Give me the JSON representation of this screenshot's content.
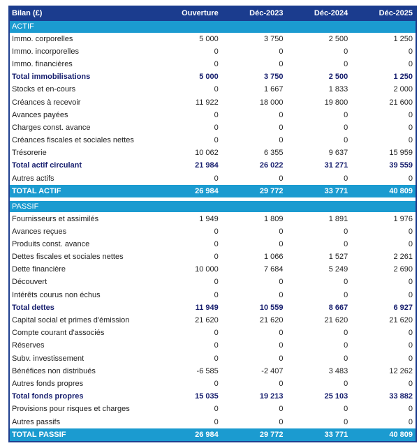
{
  "header": {
    "title": "Bilan (£)",
    "columns": [
      "Ouverture",
      "Déc-2023",
      "Déc-2024",
      "Déc-2025"
    ]
  },
  "colors": {
    "header_bg": "#1b3c8e",
    "section_bg": "#1b9bd0",
    "total_text": "#161e6e"
  },
  "sections": [
    {
      "label": "ACTIF",
      "rows": [
        {
          "label": "Immo. corporelles",
          "values": [
            "5 000",
            "3 750",
            "2 500",
            "1 250"
          ]
        },
        {
          "label": "Immo. incorporelles",
          "values": [
            "0",
            "0",
            "0",
            "0"
          ]
        },
        {
          "label": "Immo. financières",
          "values": [
            "0",
            "0",
            "0",
            "0"
          ]
        },
        {
          "label": "Total immobilisations",
          "values": [
            "5 000",
            "3 750",
            "2 500",
            "1 250"
          ],
          "type": "total"
        },
        {
          "label": "Stocks et en-cours",
          "values": [
            "0",
            "1 667",
            "1 833",
            "2 000"
          ]
        },
        {
          "label": "Créances à recevoir",
          "values": [
            "11 922",
            "18 000",
            "19 800",
            "21 600"
          ]
        },
        {
          "label": "Avances payées",
          "values": [
            "0",
            "0",
            "0",
            "0"
          ]
        },
        {
          "label": "Charges const. avance",
          "values": [
            "0",
            "0",
            "0",
            "0"
          ]
        },
        {
          "label": "Créances fiscales et sociales nettes",
          "values": [
            "0",
            "0",
            "0",
            "0"
          ]
        },
        {
          "label": "Trésorerie",
          "values": [
            "10 062",
            "6 355",
            "9 637",
            "15 959"
          ]
        },
        {
          "label": "Total actif circulant",
          "values": [
            "21 984",
            "26 022",
            "31 271",
            "39 559"
          ],
          "type": "total"
        },
        {
          "label": "Autres actifs",
          "values": [
            "0",
            "0",
            "0",
            "0"
          ]
        },
        {
          "label": "TOTAL ACTIF",
          "values": [
            "26 984",
            "29 772",
            "33 771",
            "40 809"
          ],
          "type": "grand"
        }
      ]
    },
    {
      "label": "PASSIF",
      "rows": [
        {
          "label": "Fournisseurs et assimilés",
          "values": [
            "1 949",
            "1 809",
            "1 891",
            "1 976"
          ]
        },
        {
          "label": "Avances reçues",
          "values": [
            "0",
            "0",
            "0",
            "0"
          ]
        },
        {
          "label": "Produits const. avance",
          "values": [
            "0",
            "0",
            "0",
            "0"
          ]
        },
        {
          "label": "Dettes fiscales et sociales nettes",
          "values": [
            "0",
            "1 066",
            "1 527",
            "2 261"
          ]
        },
        {
          "label": "Dette financière",
          "values": [
            "10 000",
            "7 684",
            "5 249",
            "2 690"
          ]
        },
        {
          "label": "Découvert",
          "values": [
            "0",
            "0",
            "0",
            "0"
          ]
        },
        {
          "label": "Intérêts courus non échus",
          "values": [
            "0",
            "0",
            "0",
            "0"
          ]
        },
        {
          "label": "Total dettes",
          "values": [
            "11 949",
            "10 559",
            "8 667",
            "6 927"
          ],
          "type": "total"
        },
        {
          "label": "Capital social et primes d'émission",
          "values": [
            "21 620",
            "21 620",
            "21 620",
            "21 620"
          ]
        },
        {
          "label": "Compte courant d'associés",
          "values": [
            "0",
            "0",
            "0",
            "0"
          ]
        },
        {
          "label": "Réserves",
          "values": [
            "0",
            "0",
            "0",
            "0"
          ]
        },
        {
          "label": "Subv. investissement",
          "values": [
            "0",
            "0",
            "0",
            "0"
          ]
        },
        {
          "label": "Bénéfices non distribués",
          "values": [
            "-6 585",
            "-2 407",
            "3 483",
            "12 262"
          ]
        },
        {
          "label": "Autres fonds propres",
          "values": [
            "0",
            "0",
            "0",
            "0"
          ]
        },
        {
          "label": "Total fonds propres",
          "values": [
            "15 035",
            "19 213",
            "25 103",
            "33 882"
          ],
          "type": "total"
        },
        {
          "label": "Provisions pour risques et charges",
          "values": [
            "0",
            "0",
            "0",
            "0"
          ]
        },
        {
          "label": "Autres passifs",
          "values": [
            "0",
            "0",
            "0",
            "0"
          ]
        },
        {
          "label": "TOTAL PASSIF",
          "values": [
            "26 984",
            "29 772",
            "33 771",
            "40 809"
          ],
          "type": "grand"
        }
      ]
    }
  ]
}
